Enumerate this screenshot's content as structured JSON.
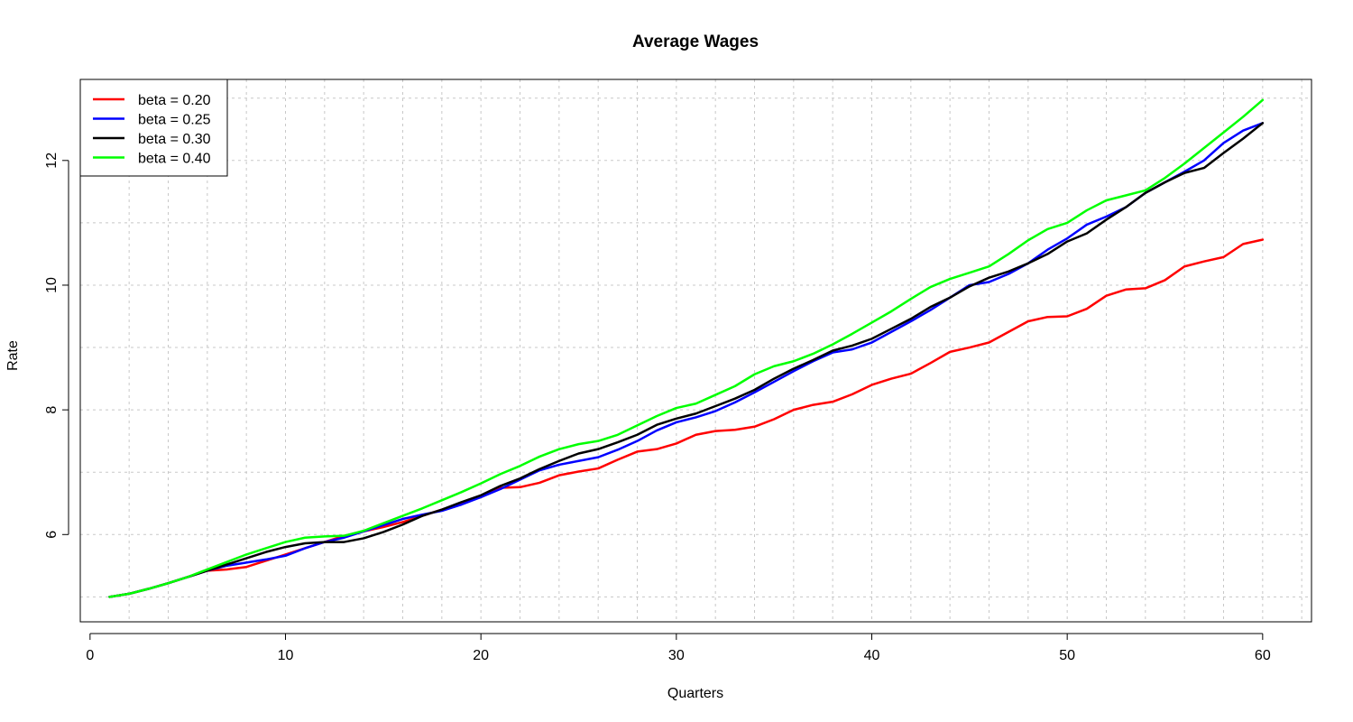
{
  "chart_data": {
    "type": "line",
    "title": "Average Wages",
    "xlabel": "Quarters",
    "ylabel": "Rate",
    "xlim": [
      -0.5,
      62.5
    ],
    "ylim": [
      4.6,
      13.3
    ],
    "x_ticks": [
      0,
      10,
      20,
      30,
      40,
      50,
      60
    ],
    "y_ticks": [
      6,
      8,
      10,
      12
    ],
    "grid": true,
    "grid_x_step": 2,
    "grid_y_values": [
      5,
      6,
      7,
      8,
      9,
      10,
      11,
      12,
      13
    ],
    "legend_position": "top-left",
    "x": [
      1,
      2,
      3,
      4,
      5,
      6,
      7,
      8,
      9,
      10,
      11,
      12,
      13,
      14,
      15,
      16,
      17,
      18,
      19,
      20,
      21,
      22,
      23,
      24,
      25,
      26,
      27,
      28,
      29,
      30,
      31,
      32,
      33,
      34,
      35,
      36,
      37,
      38,
      39,
      40,
      41,
      42,
      43,
      44,
      45,
      46,
      47,
      48,
      49,
      50,
      51,
      52,
      53,
      54,
      55,
      56,
      57,
      58,
      59,
      60
    ],
    "series": [
      {
        "name": "beta = 0.20",
        "color": "#ff0000",
        "values": [
          5.0,
          5.05,
          5.13,
          5.22,
          5.32,
          5.42,
          5.44,
          5.48,
          5.58,
          5.68,
          5.78,
          5.88,
          5.98,
          6.05,
          6.12,
          6.2,
          6.3,
          6.4,
          6.5,
          6.6,
          6.75,
          6.76,
          6.83,
          6.95,
          7.01,
          7.06,
          7.2,
          7.33,
          7.37,
          7.46,
          7.6,
          7.66,
          7.68,
          7.73,
          7.85,
          8.0,
          8.08,
          8.13,
          8.25,
          8.4,
          8.5,
          8.58,
          8.75,
          8.93,
          9.0,
          9.08,
          9.25,
          9.42,
          9.49,
          9.5,
          9.62,
          9.83,
          9.93,
          9.95,
          10.08,
          10.3,
          10.38,
          10.45,
          10.66,
          10.73
        ]
      },
      {
        "name": "beta = 0.25",
        "color": "#0000ff",
        "values": [
          5.0,
          5.05,
          5.13,
          5.22,
          5.32,
          5.42,
          5.5,
          5.55,
          5.6,
          5.66,
          5.78,
          5.88,
          5.95,
          6.05,
          6.15,
          6.25,
          6.32,
          6.38,
          6.48,
          6.6,
          6.73,
          6.88,
          7.03,
          7.12,
          7.18,
          7.24,
          7.36,
          7.5,
          7.67,
          7.8,
          7.88,
          7.98,
          8.12,
          8.28,
          8.45,
          8.62,
          8.78,
          8.92,
          8.97,
          9.08,
          9.25,
          9.42,
          9.6,
          9.8,
          10.0,
          10.05,
          10.18,
          10.35,
          10.57,
          10.75,
          10.97,
          11.1,
          11.25,
          11.48,
          11.65,
          11.82,
          12.0,
          12.28,
          12.48,
          12.6
        ]
      },
      {
        "name": "beta = 0.30",
        "color": "#000000",
        "values": [
          5.0,
          5.05,
          5.13,
          5.22,
          5.32,
          5.42,
          5.52,
          5.62,
          5.72,
          5.8,
          5.86,
          5.88,
          5.88,
          5.94,
          6.04,
          6.16,
          6.3,
          6.4,
          6.52,
          6.63,
          6.78,
          6.9,
          7.05,
          7.18,
          7.3,
          7.37,
          7.48,
          7.6,
          7.76,
          7.86,
          7.94,
          8.06,
          8.18,
          8.32,
          8.5,
          8.66,
          8.8,
          8.95,
          9.03,
          9.14,
          9.3,
          9.46,
          9.65,
          9.8,
          9.98,
          10.12,
          10.22,
          10.35,
          10.5,
          10.7,
          10.83,
          11.05,
          11.25,
          11.48,
          11.65,
          11.8,
          11.88,
          12.12,
          12.35,
          12.6
        ]
      },
      {
        "name": "beta = 0.40",
        "color": "#00ff00",
        "values": [
          5.0,
          5.05,
          5.13,
          5.22,
          5.32,
          5.44,
          5.56,
          5.68,
          5.78,
          5.88,
          5.95,
          5.97,
          5.98,
          6.06,
          6.18,
          6.3,
          6.42,
          6.55,
          6.68,
          6.82,
          6.97,
          7.1,
          7.25,
          7.37,
          7.45,
          7.5,
          7.6,
          7.75,
          7.9,
          8.03,
          8.1,
          8.24,
          8.38,
          8.57,
          8.7,
          8.78,
          8.9,
          9.05,
          9.22,
          9.4,
          9.58,
          9.78,
          9.97,
          10.1,
          10.2,
          10.3,
          10.5,
          10.72,
          10.9,
          11.0,
          11.2,
          11.36,
          11.44,
          11.52,
          11.72,
          11.95,
          12.2,
          12.45,
          12.7,
          12.97
        ]
      }
    ]
  }
}
